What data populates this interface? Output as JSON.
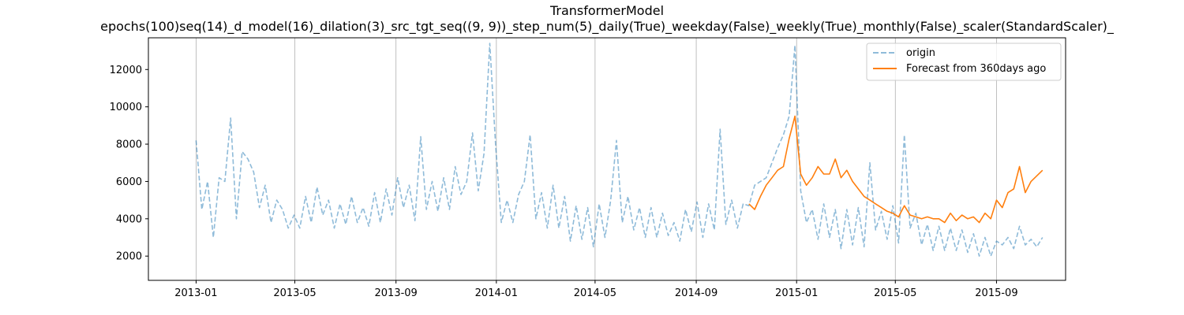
{
  "chart_data": {
    "type": "line",
    "title": "TransformerModel",
    "subtitle": "epochs(100)seq(14)_d_model(16)_dilation(3)_src_tgt_seq((9, 9))_step_num(5)_daily(True)_weekday(False)_weekly(True)_monthly(False)_scaler(StandardScaler)_",
    "xlabel": "",
    "ylabel": "",
    "x_axis_type": "date",
    "xlim": [
      "2012-11-04",
      "2015-11-24"
    ],
    "ylim": [
      700,
      13700
    ],
    "x_ticks": [
      "2013-01",
      "2013-05",
      "2013-09",
      "2014-01",
      "2014-05",
      "2014-09",
      "2015-01",
      "2015-05",
      "2015-09"
    ],
    "y_ticks": [
      2000,
      4000,
      6000,
      8000,
      10000,
      12000
    ],
    "grid": "x-only",
    "legend_position": "top-right",
    "series": [
      {
        "name": "origin",
        "color": "#1f77b4",
        "style": "dashed",
        "opacity": 0.5,
        "x": [
          "2013-01-01",
          "2013-01-08",
          "2013-01-15",
          "2013-01-22",
          "2013-01-29",
          "2013-02-05",
          "2013-02-12",
          "2013-02-19",
          "2013-02-26",
          "2013-03-05",
          "2013-03-12",
          "2013-03-19",
          "2013-03-26",
          "2013-04-02",
          "2013-04-09",
          "2013-04-16",
          "2013-04-23",
          "2013-04-30",
          "2013-05-07",
          "2013-05-14",
          "2013-05-21",
          "2013-05-28",
          "2013-06-04",
          "2013-06-11",
          "2013-06-18",
          "2013-06-25",
          "2013-07-02",
          "2013-07-09",
          "2013-07-16",
          "2013-07-23",
          "2013-07-30",
          "2013-08-06",
          "2013-08-13",
          "2013-08-20",
          "2013-08-27",
          "2013-09-03",
          "2013-09-10",
          "2013-09-17",
          "2013-09-24",
          "2013-10-01",
          "2013-10-08",
          "2013-10-15",
          "2013-10-22",
          "2013-10-29",
          "2013-11-05",
          "2013-11-12",
          "2013-11-19",
          "2013-11-26",
          "2013-12-03",
          "2013-12-10",
          "2013-12-17",
          "2013-12-24",
          "2013-12-31",
          "2014-01-07",
          "2014-01-14",
          "2014-01-21",
          "2014-01-28",
          "2014-02-04",
          "2014-02-11",
          "2014-02-18",
          "2014-02-25",
          "2014-03-04",
          "2014-03-11",
          "2014-03-18",
          "2014-03-25",
          "2014-04-01",
          "2014-04-08",
          "2014-04-15",
          "2014-04-22",
          "2014-04-29",
          "2014-05-06",
          "2014-05-13",
          "2014-05-20",
          "2014-05-27",
          "2014-06-03",
          "2014-06-10",
          "2014-06-17",
          "2014-06-24",
          "2014-07-01",
          "2014-07-08",
          "2014-07-15",
          "2014-07-22",
          "2014-07-29",
          "2014-08-05",
          "2014-08-12",
          "2014-08-19",
          "2014-08-26",
          "2014-09-02",
          "2014-09-09",
          "2014-09-16",
          "2014-09-23",
          "2014-09-30",
          "2014-10-07",
          "2014-10-14",
          "2014-10-21",
          "2014-10-28",
          "2014-11-04",
          "2014-11-11",
          "2014-11-18",
          "2014-11-25",
          "2014-12-02",
          "2014-12-09",
          "2014-12-16",
          "2014-12-23",
          "2014-12-30",
          "2015-01-06",
          "2015-01-13",
          "2015-01-20",
          "2015-01-27",
          "2015-02-03",
          "2015-02-10",
          "2015-02-17",
          "2015-02-24",
          "2015-03-03",
          "2015-03-10",
          "2015-03-17",
          "2015-03-24",
          "2015-03-31",
          "2015-04-07",
          "2015-04-14",
          "2015-04-21",
          "2015-04-28",
          "2015-05-05",
          "2015-05-12",
          "2015-05-19",
          "2015-05-26",
          "2015-06-02",
          "2015-06-09",
          "2015-06-16",
          "2015-06-23",
          "2015-06-30",
          "2015-07-07",
          "2015-07-14",
          "2015-07-21",
          "2015-07-28",
          "2015-08-04",
          "2015-08-11",
          "2015-08-18",
          "2015-08-25",
          "2015-09-01",
          "2015-09-08",
          "2015-09-15",
          "2015-09-22",
          "2015-09-29",
          "2015-10-06",
          "2015-10-13",
          "2015-10-20",
          "2015-10-27"
        ],
        "values": [
          8200,
          4500,
          6000,
          3000,
          6200,
          6000,
          9400,
          4000,
          7600,
          7200,
          6500,
          4600,
          5800,
          3800,
          5000,
          4500,
          3500,
          4200,
          3500,
          5200,
          3800,
          5700,
          4200,
          5000,
          3500,
          4800,
          3700,
          5200,
          3800,
          4600,
          3600,
          5400,
          3800,
          5600,
          4200,
          6200,
          4600,
          5800,
          3900,
          8400,
          4500,
          6000,
          4400,
          6200,
          4500,
          6800,
          5300,
          6000,
          8600,
          5500,
          7500,
          13400,
          8000,
          3800,
          5000,
          3800,
          5300,
          6000,
          8500,
          4000,
          5400,
          3500,
          5800,
          3500,
          5200,
          2800,
          4700,
          2900,
          4600,
          2500,
          4800,
          3000,
          5000,
          8200,
          3800,
          5200,
          3400,
          4600,
          3000,
          4600,
          3000,
          4300,
          3100,
          3800,
          2800,
          4500,
          3300,
          4900,
          3000,
          4800,
          3400,
          8800,
          3700,
          5000,
          3500,
          4800,
          4700,
          5800,
          6000,
          6200,
          7000,
          7800,
          8500,
          9500,
          13300,
          5500,
          3800,
          4500,
          2900,
          4800,
          3000,
          4500,
          2400,
          4500,
          2600,
          4600,
          2500,
          7000,
          3400,
          4400,
          2900,
          4700,
          2700,
          8500,
          3500,
          4300,
          2600,
          3700,
          2300,
          3600,
          2300,
          3500,
          2300,
          3400,
          2200,
          3200,
          2000,
          3000,
          2000,
          2800,
          2600,
          3000,
          2400,
          3600,
          2600,
          2900,
          2500,
          3000
        ]
      },
      {
        "name": "Forecast from 360days ago",
        "color": "#ff7f0e",
        "style": "solid",
        "opacity": 1,
        "x": [
          "2014-11-04",
          "2014-11-11",
          "2014-11-18",
          "2014-11-25",
          "2014-12-02",
          "2014-12-09",
          "2014-12-16",
          "2014-12-23",
          "2014-12-30",
          "2015-01-06",
          "2015-01-13",
          "2015-01-20",
          "2015-01-27",
          "2015-02-03",
          "2015-02-10",
          "2015-02-17",
          "2015-02-24",
          "2015-03-03",
          "2015-03-10",
          "2015-03-17",
          "2015-03-24",
          "2015-03-31",
          "2015-04-07",
          "2015-04-14",
          "2015-04-21",
          "2015-04-28",
          "2015-05-05",
          "2015-05-12",
          "2015-05-19",
          "2015-05-26",
          "2015-06-02",
          "2015-06-09",
          "2015-06-16",
          "2015-06-23",
          "2015-06-30",
          "2015-07-07",
          "2015-07-14",
          "2015-07-21",
          "2015-07-28",
          "2015-08-04",
          "2015-08-11",
          "2015-08-18",
          "2015-08-25",
          "2015-09-01",
          "2015-09-08",
          "2015-09-15",
          "2015-09-22",
          "2015-09-29",
          "2015-10-06",
          "2015-10-13",
          "2015-10-20",
          "2015-10-27"
        ],
        "values": [
          4800,
          4500,
          5200,
          5800,
          6200,
          6600,
          6800,
          8300,
          9500,
          6400,
          5800,
          6200,
          6800,
          6400,
          6400,
          7200,
          6200,
          6600,
          6000,
          5600,
          5200,
          5000,
          4800,
          4600,
          4400,
          4300,
          4100,
          4700,
          4200,
          4100,
          4000,
          4100,
          4000,
          4000,
          3800,
          4300,
          3900,
          4200,
          4000,
          4100,
          3800,
          4300,
          4000,
          5000,
          4600,
          5400,
          5600,
          6800,
          5400,
          6000,
          6300,
          6600
        ]
      }
    ]
  }
}
